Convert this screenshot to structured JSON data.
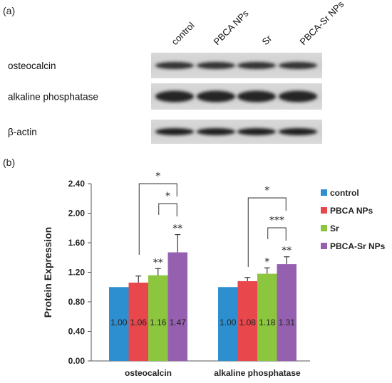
{
  "panels": {
    "a": "(a)",
    "b": "(b)"
  },
  "blot": {
    "columns": [
      "control",
      "PBCA NPs",
      "Sr",
      "PBCA-Sr NPs"
    ],
    "rows": [
      {
        "label": "osteocalcin"
      },
      {
        "label": "alkaline phosphatase"
      },
      {
        "label": "β-actin"
      }
    ]
  },
  "chart_data": {
    "type": "bar",
    "ylabel": "Protein Expression",
    "xlabel": "",
    "ylim": [
      0,
      2.4
    ],
    "yticks": [
      "0.00",
      "0.40",
      "0.80",
      "1.20",
      "1.60",
      "2.00",
      "2.40"
    ],
    "categories": [
      "osteocalcin",
      "alkaline phosphatase"
    ],
    "legend_position": "right",
    "series": [
      {
        "name": "control",
        "color": "#2E8FD0",
        "values": [
          1.0,
          1.0
        ],
        "errors": [
          0,
          0
        ],
        "labels": [
          "1.00",
          "1.00"
        ],
        "stars": [
          "",
          ""
        ]
      },
      {
        "name": "PBCA NPs",
        "color": "#E8474C",
        "values": [
          1.06,
          1.08
        ],
        "errors": [
          0.09,
          0.05
        ],
        "labels": [
          "1.06",
          "1.08"
        ],
        "stars": [
          "",
          ""
        ]
      },
      {
        "name": "Sr",
        "color": "#8CC63F",
        "values": [
          1.16,
          1.18
        ],
        "errors": [
          0.09,
          0.08
        ],
        "labels": [
          "1.16",
          "1.18"
        ],
        "stars": [
          "**",
          "*"
        ]
      },
      {
        "name": "PBCA-Sr NPs",
        "color": "#9560B0",
        "values": [
          1.47,
          1.31
        ],
        "errors": [
          0.24,
          0.1
        ],
        "labels": [
          "1.47",
          "1.31"
        ],
        "stars": [
          "**",
          "**"
        ]
      }
    ],
    "brackets": [
      {
        "category": 0,
        "from": 1,
        "to": 3,
        "label": "*"
      },
      {
        "category": 0,
        "from": 2,
        "to": 3,
        "label": "*"
      },
      {
        "category": 1,
        "from": 1,
        "to": 3,
        "label": "*"
      },
      {
        "category": 1,
        "from": 2,
        "to": 3,
        "label": "***"
      }
    ],
    "grid": false
  }
}
